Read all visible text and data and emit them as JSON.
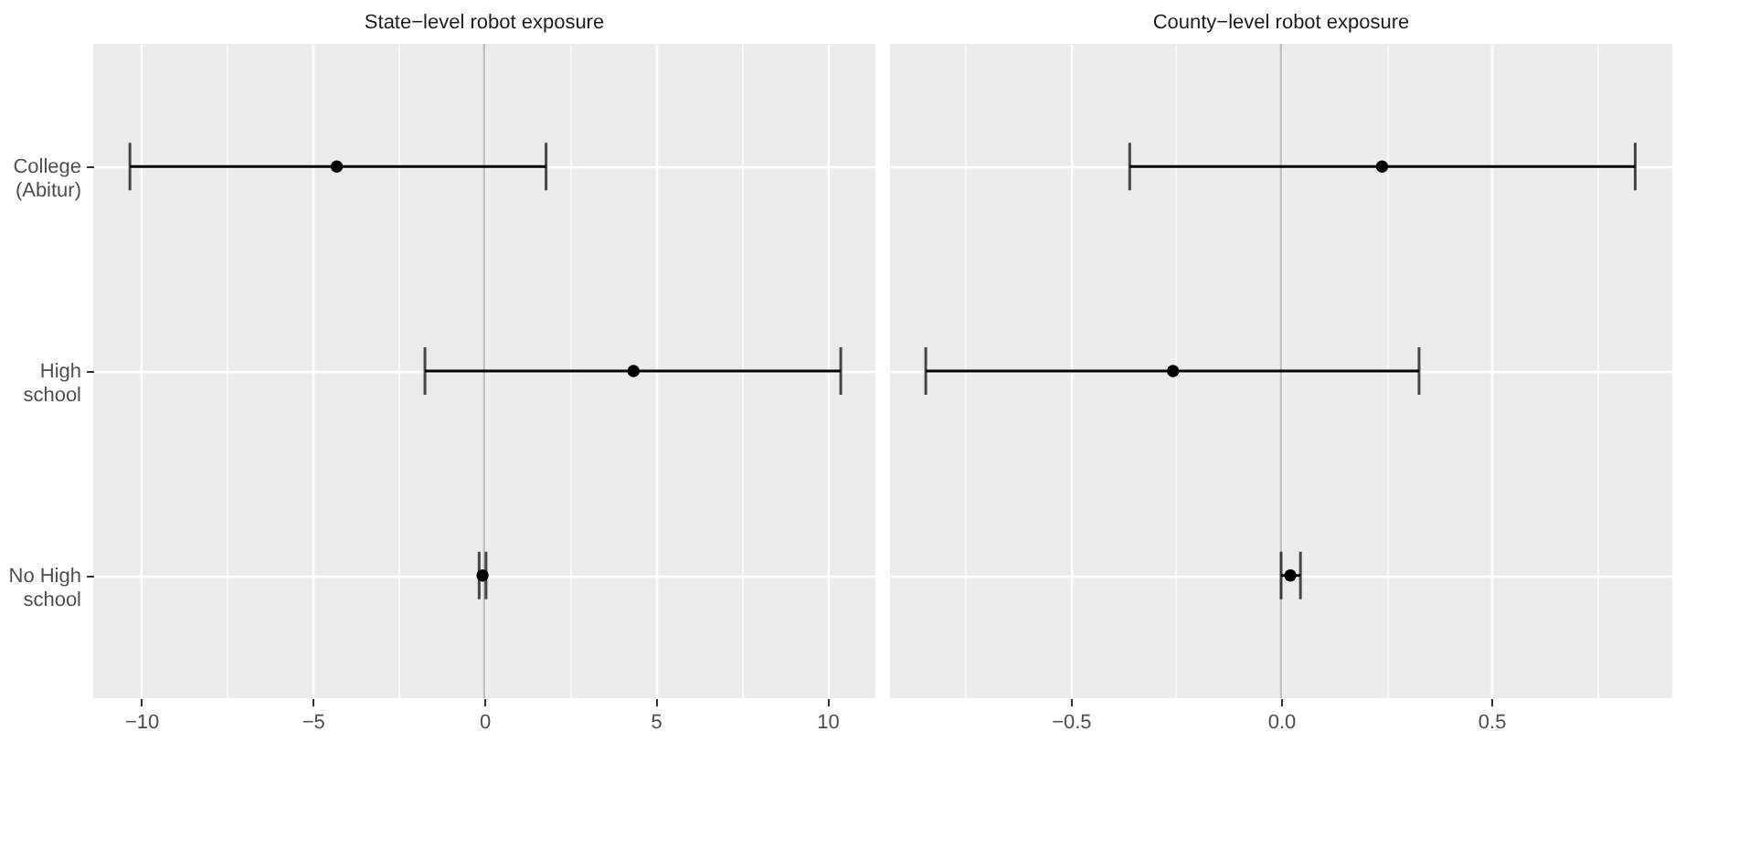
{
  "chart_data": [
    {
      "type": "scatter",
      "orientation": "horizontal",
      "title": "State−level robot exposure",
      "categories": [
        "College\n(Abitur)",
        "High\nschool",
        "No High\nschool"
      ],
      "values": [
        -4.3,
        4.35,
        -0.05
      ],
      "errors": [
        [
          -10.33,
          1.8
        ],
        [
          -1.73,
          10.39
        ],
        [
          -0.15,
          0.05
        ]
      ],
      "color": "#000000",
      "xlim": [
        -11.4,
        11.4
      ],
      "xticks": [
        -10,
        {
          "value": -7.5,
          "label": null
        },
        -5,
        {
          "value": -2.5,
          "label": null
        },
        0,
        {
          "value": 2.5,
          "label": null
        },
        5,
        {
          "value": 7.5,
          "label": null
        },
        10
      ],
      "ref_lines": [
        {
          "axis": "x",
          "value": 0,
          "color": "#bdbdbd"
        }
      ],
      "grid": true,
      "marker": "circle"
    },
    {
      "type": "scatter",
      "orientation": "horizontal",
      "title": "County−level robot exposure",
      "categories": [
        "College\n(Abitur)",
        "High\nschool",
        "No High\nschool"
      ],
      "values": [
        0.24,
        -0.257,
        0.022
      ],
      "errors": [
        [
          -0.36,
          0.842
        ],
        [
          -0.845,
          0.328
        ],
        [
          0.0,
          0.046
        ]
      ],
      "color": "#000000",
      "xlim": [
        -0.93,
        0.93
      ],
      "xticks": [
        {
          "value": -0.75,
          "label": null
        },
        -0.5,
        {
          "value": -0.25,
          "label": null
        },
        {
          "value": 0,
          "label": "0.0"
        },
        {
          "value": 0.25,
          "label": null
        },
        0.5,
        {
          "value": 0.75,
          "label": null
        }
      ],
      "ref_lines": [
        {
          "axis": "x",
          "value": 0,
          "color": "#bdbdbd"
        }
      ],
      "grid": true,
      "marker": "circle",
      "tick_labels": "x"
    }
  ]
}
